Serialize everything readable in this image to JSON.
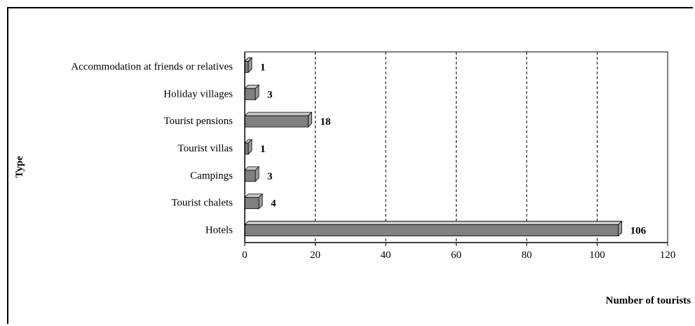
{
  "chart_data": {
    "type": "bar",
    "orientation": "horizontal",
    "categories": [
      "Accommodation at friends or relatives",
      "Holiday villages",
      "Tourist pensions",
      "Tourist villas",
      "Campings",
      "Tourist chalets",
      "Hotels"
    ],
    "values": [
      1,
      3,
      18,
      1,
      3,
      4,
      106
    ],
    "value_labels": [
      "1",
      "3",
      "18",
      "1",
      "3",
      "4",
      "106"
    ],
    "xlabel": "Number of tourists",
    "ylabel": "Type",
    "xlim": [
      0,
      120
    ],
    "xticks": [
      0,
      20,
      40,
      60,
      80,
      100,
      120
    ],
    "xtick_labels": [
      "0",
      "20",
      "40",
      "60",
      "80",
      "100",
      "120"
    ],
    "grid": "vertical dashed",
    "bar_color": "#808080",
    "style": "3d-bars"
  }
}
